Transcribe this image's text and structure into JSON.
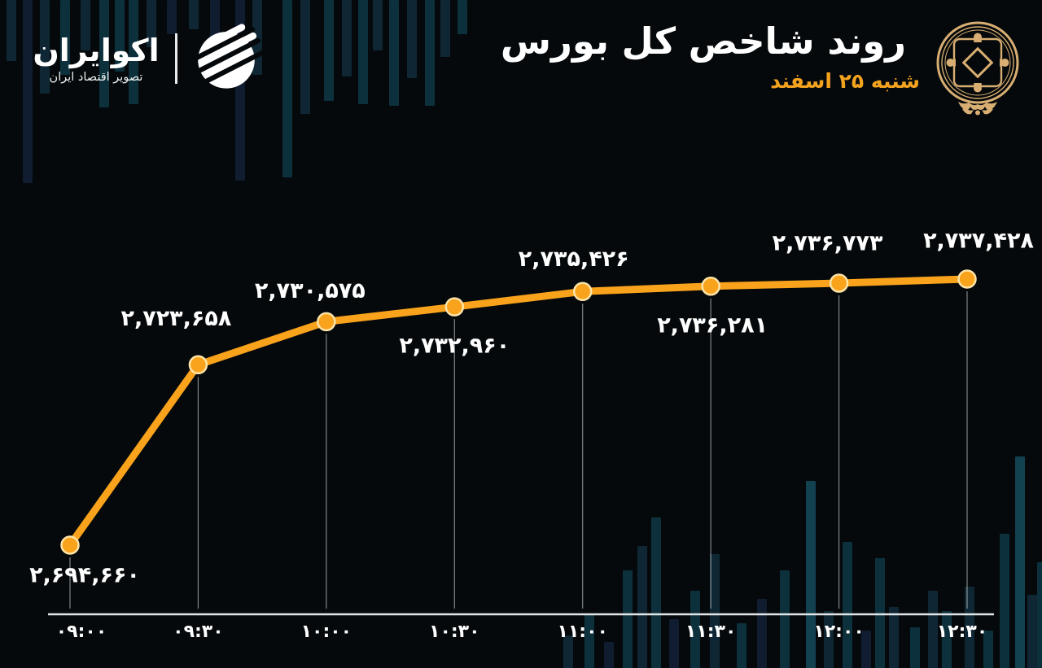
{
  "header": {
    "title": "روند شاخص کل بورس",
    "date": "شنبه ۲۵ اسفند"
  },
  "brand": {
    "name": "اکوایران",
    "tagline": "تصویر اقتصاد ایران",
    "logo_icon": "ecoiran-striped-circle-logo",
    "emblem_icon": "gold-ornamental-seal"
  },
  "colors": {
    "background": "#05090b",
    "line": "#F9A21B",
    "marker_fill": "#F9A21B",
    "marker_stroke": "#FFE4A8",
    "accent_orange": "#F5A31E",
    "emblem_gold": "#D8AE72",
    "text": "#FFFFFF",
    "gridline": "rgba(255,255,255,0.5)",
    "axis": "#E3E6E6"
  },
  "chart_data": {
    "type": "line",
    "title": "روند شاخص کل بورس",
    "date_label": "شنبه ۲۵ اسفند",
    "x": [
      "09:00",
      "09:30",
      "10:00",
      "10:30",
      "11:00",
      "11:30",
      "12:00",
      "12:30"
    ],
    "x_labels": [
      "۰۹:۰۰",
      "۰۹:۳۰",
      "۱۰:۰۰",
      "۱۰:۳۰",
      "۱۱:۰۰",
      "۱۱:۳۰",
      "۱۲:۰۰",
      "۱۲:۳۰"
    ],
    "series": [
      {
        "name": "شاخص کل بورس",
        "values": [
          2694660,
          2723658,
          2730575,
          2732960,
          2735426,
          2736281,
          2736773,
          2737428
        ]
      }
    ],
    "value_labels": [
      "۲,۶۹۴,۶۶۰",
      "۲,۷۲۳,۶۵۸",
      "۲,۷۳۰,۵۷۵",
      "۲,۷۳۲,۹۶۰",
      "۲,۷۳۵,۴۲۶",
      "۲,۷۳۶,۲۸۱",
      "۲,۷۳۶,۷۷۳",
      "۲,۷۳۷,۴۲۸"
    ],
    "label_position": [
      "below",
      "above",
      "above",
      "below",
      "above",
      "below",
      "above",
      "above"
    ],
    "ylim": [
      2694660,
      2737428
    ],
    "xlabel": "",
    "ylabel": "",
    "grid": "vertical drop-lines from each point to the x-axis",
    "legend": "none"
  }
}
